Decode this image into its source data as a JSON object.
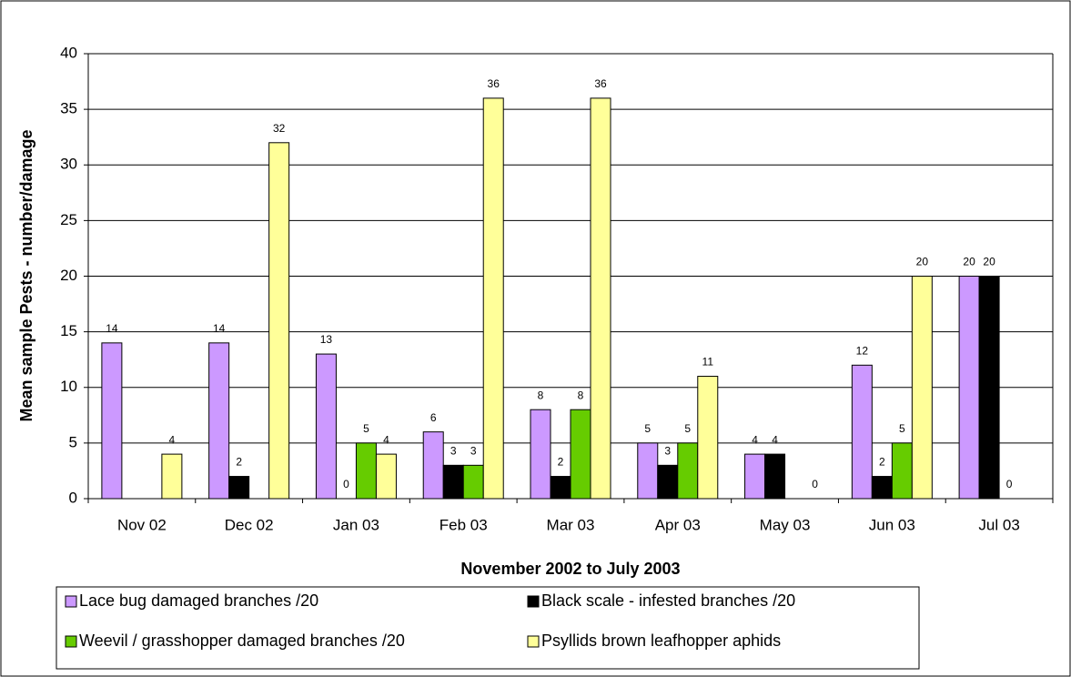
{
  "chart_data": {
    "type": "bar",
    "x_label": "November 2002 to July 2003",
    "y_label": "Mean sample Pests - number/damage",
    "categories": [
      "Nov 02",
      "Dec 02",
      "Jan 03",
      "Feb 03",
      "Mar 03",
      "Apr 03",
      "May 03",
      "Jun 03",
      "Jul 03"
    ],
    "series": [
      {
        "name": "Lace bug damaged branches /20",
        "color": "#cc99ff",
        "values": [
          14,
          14,
          13,
          6,
          8,
          5,
          4,
          12,
          20
        ]
      },
      {
        "name": "Black scale - infested branches /20",
        "color": "#000000",
        "values": [
          null,
          2,
          0,
          3,
          2,
          3,
          4,
          2,
          20
        ]
      },
      {
        "name": "Weevil / grasshopper damaged branches /20",
        "color": "#66cc00",
        "values": [
          null,
          null,
          5,
          3,
          8,
          5,
          null,
          5,
          0
        ]
      },
      {
        "name": "Psyllids brown leafhopper aphids",
        "color": "#ffff99",
        "values": [
          4,
          32,
          4,
          36,
          36,
          11,
          0,
          20,
          null
        ]
      }
    ],
    "ylim": [
      0,
      40
    ],
    "yticks": [
      0,
      5,
      10,
      15,
      20,
      25,
      30,
      35,
      40
    ],
    "grid": true
  }
}
